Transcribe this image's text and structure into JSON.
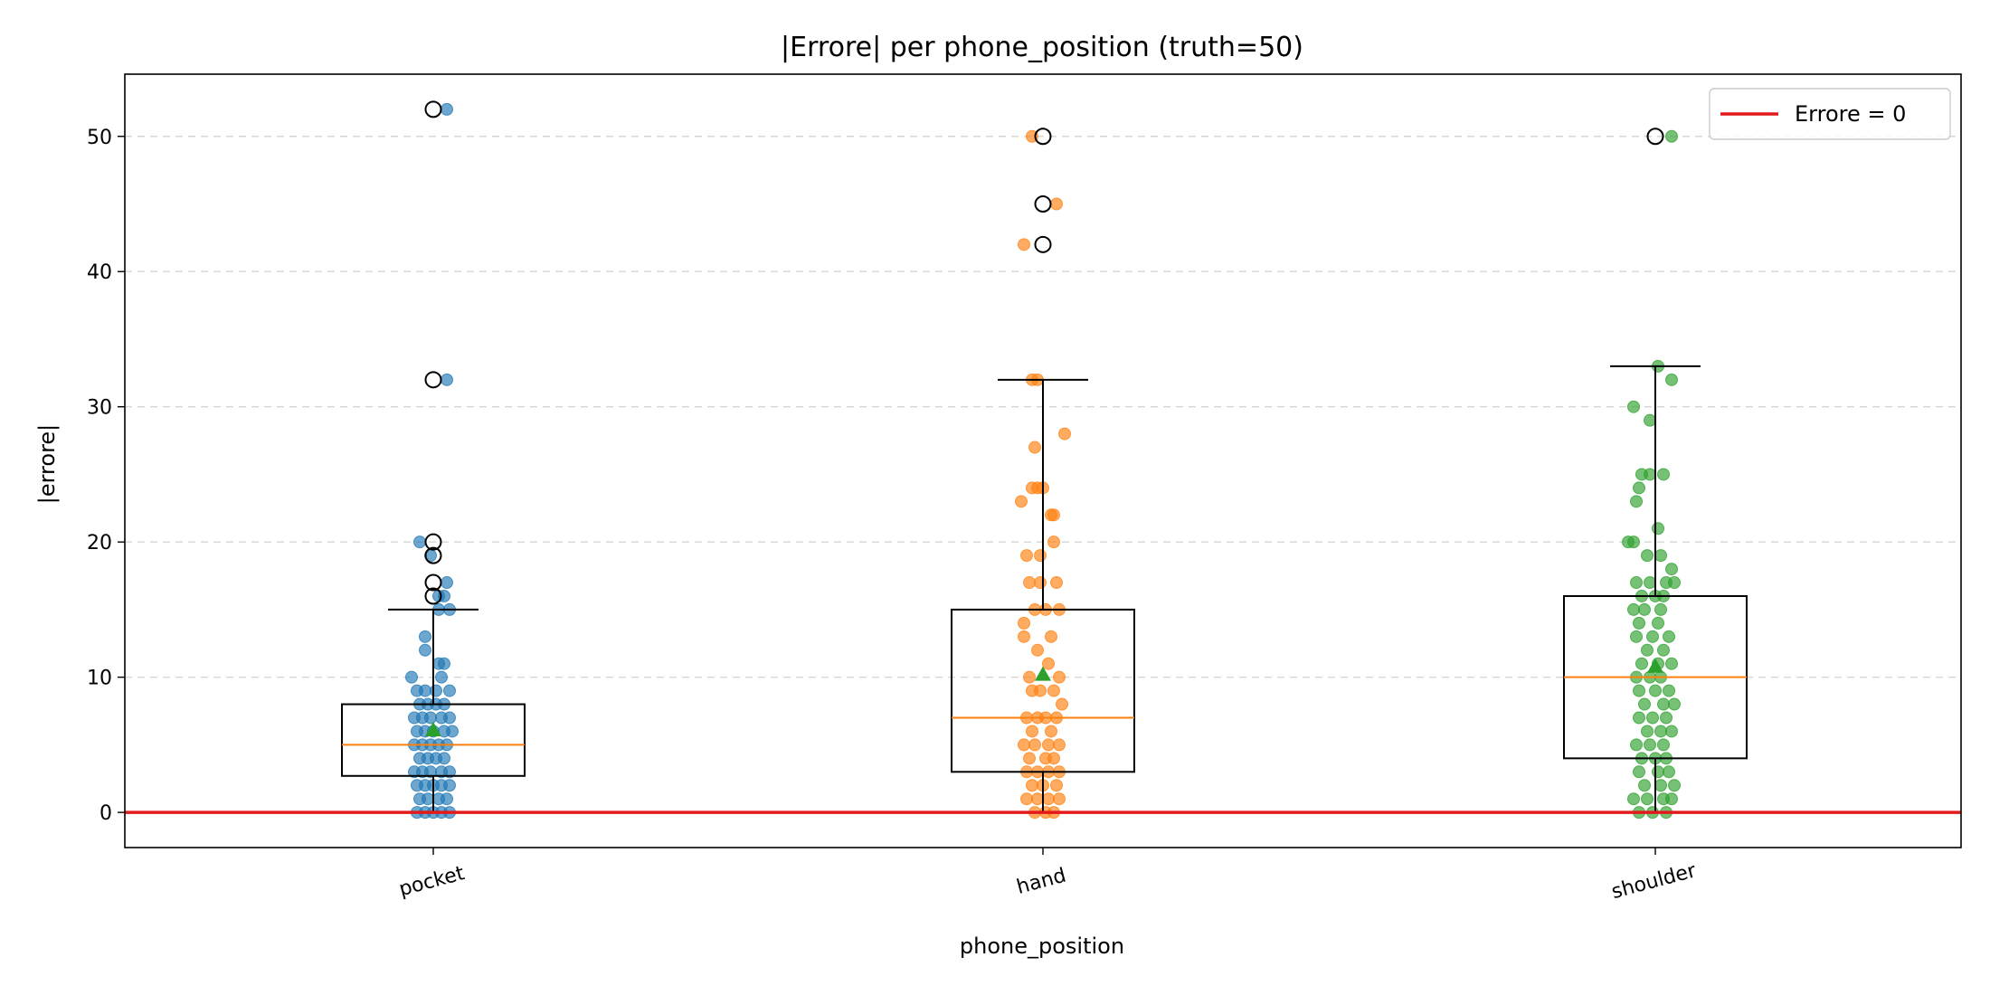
{
  "chart_data": {
    "type": "box",
    "title": "|Errore| per phone_position (truth=50)",
    "xlabel": "phone_position",
    "ylabel": "|errore|",
    "categories": [
      "pocket",
      "hand",
      "shoulder"
    ],
    "ylim": [
      -2.6,
      54.6
    ],
    "yticks": [
      0,
      10,
      20,
      30,
      40,
      50
    ],
    "grid": "y-dashed",
    "legend": {
      "placement": "top-right",
      "label": "Errore = 0"
    },
    "reference_line": {
      "y": 0,
      "label": "Errore = 0",
      "color": "#e31a1c"
    },
    "colors": {
      "pocket": "#1f77b4",
      "hand": "#ff7f0e",
      "shoulder": "#2ca02c",
      "median": "#ff7f0e",
      "mean": "#2ca02c",
      "box": "#000000"
    },
    "series": [
      {
        "category": "pocket",
        "color": "#1f77b4",
        "box": {
          "whisker_low": 0,
          "q1": 2.7,
          "median": 5,
          "q3": 8,
          "whisker_high": 15,
          "mean": 6.1
        },
        "outliers": [
          52,
          32,
          20,
          19,
          17,
          16
        ],
        "points": [
          [
            0.05,
            52
          ],
          [
            0.05,
            32
          ],
          [
            -0.05,
            20
          ],
          [
            -0.01,
            19
          ],
          [
            0.05,
            17
          ],
          [
            0.02,
            16
          ],
          [
            0.04,
            16
          ],
          [
            0.02,
            15
          ],
          [
            0.06,
            15
          ],
          [
            -0.03,
            13
          ],
          [
            -0.03,
            12
          ],
          [
            0.02,
            11
          ],
          [
            0.04,
            11
          ],
          [
            -0.08,
            10
          ],
          [
            0.03,
            10
          ],
          [
            -0.06,
            9
          ],
          [
            -0.03,
            9
          ],
          [
            0.01,
            9
          ],
          [
            0.06,
            9
          ],
          [
            -0.05,
            8
          ],
          [
            -0.02,
            8
          ],
          [
            0.01,
            8
          ],
          [
            0.04,
            8
          ],
          [
            -0.07,
            7
          ],
          [
            -0.04,
            7
          ],
          [
            -0.01,
            7
          ],
          [
            0.03,
            7
          ],
          [
            0.06,
            7
          ],
          [
            -0.06,
            6
          ],
          [
            -0.03,
            6
          ],
          [
            0.0,
            6
          ],
          [
            0.04,
            6
          ],
          [
            0.07,
            6
          ],
          [
            -0.07,
            5
          ],
          [
            -0.04,
            5
          ],
          [
            -0.01,
            5
          ],
          [
            0.02,
            5
          ],
          [
            0.05,
            5
          ],
          [
            -0.05,
            4
          ],
          [
            -0.02,
            4
          ],
          [
            0.01,
            4
          ],
          [
            0.04,
            4
          ],
          [
            -0.07,
            3
          ],
          [
            -0.04,
            3
          ],
          [
            -0.01,
            3
          ],
          [
            0.03,
            3
          ],
          [
            0.06,
            3
          ],
          [
            -0.06,
            2
          ],
          [
            -0.03,
            2
          ],
          [
            0.0,
            2
          ],
          [
            0.03,
            2
          ],
          [
            0.06,
            2
          ],
          [
            -0.05,
            1
          ],
          [
            -0.02,
            1
          ],
          [
            0.02,
            1
          ],
          [
            0.05,
            1
          ],
          [
            -0.06,
            0
          ],
          [
            -0.03,
            0
          ],
          [
            0.0,
            0
          ],
          [
            0.03,
            0
          ],
          [
            0.06,
            0
          ]
        ]
      },
      {
        "category": "hand",
        "color": "#ff7f0e",
        "box": {
          "whisker_low": 0,
          "q1": 3,
          "median": 7,
          "q3": 15,
          "whisker_high": 32,
          "mean": 10.2
        },
        "outliers": [
          50,
          45,
          42
        ],
        "points": [
          [
            -0.04,
            50
          ],
          [
            0.05,
            45
          ],
          [
            -0.07,
            42
          ],
          [
            -0.04,
            32
          ],
          [
            -0.02,
            32
          ],
          [
            0.08,
            28
          ],
          [
            -0.03,
            27
          ],
          [
            -0.04,
            24
          ],
          [
            -0.02,
            24
          ],
          [
            0.0,
            24
          ],
          [
            -0.08,
            23
          ],
          [
            0.03,
            22
          ],
          [
            0.04,
            22
          ],
          [
            -0.06,
            19
          ],
          [
            -0.01,
            19
          ],
          [
            0.04,
            20
          ],
          [
            -0.05,
            17
          ],
          [
            -0.01,
            17
          ],
          [
            0.05,
            17
          ],
          [
            -0.07,
            14
          ],
          [
            -0.03,
            15
          ],
          [
            0.01,
            15
          ],
          [
            0.06,
            15
          ],
          [
            -0.07,
            13
          ],
          [
            0.03,
            13
          ],
          [
            -0.02,
            12
          ],
          [
            0.02,
            11
          ],
          [
            -0.05,
            10
          ],
          [
            0.06,
            10
          ],
          [
            -0.04,
            9
          ],
          [
            -0.01,
            9
          ],
          [
            0.04,
            9
          ],
          [
            0.07,
            8
          ],
          [
            -0.06,
            7
          ],
          [
            -0.02,
            7
          ],
          [
            0.01,
            7
          ],
          [
            0.05,
            7
          ],
          [
            -0.04,
            6
          ],
          [
            0.03,
            6
          ],
          [
            -0.07,
            5
          ],
          [
            -0.03,
            5
          ],
          [
            0.02,
            5
          ],
          [
            0.06,
            5
          ],
          [
            -0.05,
            4
          ],
          [
            0.01,
            4
          ],
          [
            0.04,
            4
          ],
          [
            -0.06,
            3
          ],
          [
            -0.02,
            3
          ],
          [
            0.02,
            3
          ],
          [
            0.06,
            3
          ],
          [
            -0.04,
            2
          ],
          [
            0.0,
            2
          ],
          [
            0.05,
            2
          ],
          [
            -0.06,
            1
          ],
          [
            -0.02,
            1
          ],
          [
            0.02,
            1
          ],
          [
            0.06,
            1
          ],
          [
            -0.03,
            0
          ],
          [
            0.01,
            0
          ],
          [
            0.04,
            0
          ]
        ]
      },
      {
        "category": "shoulder",
        "color": "#2ca02c",
        "box": {
          "whisker_low": 0,
          "q1": 4,
          "median": 10,
          "q3": 16,
          "whisker_high": 33,
          "mean": 10.8
        },
        "outliers": [
          50
        ],
        "points": [
          [
            0.06,
            50
          ],
          [
            0.01,
            33
          ],
          [
            0.06,
            32
          ],
          [
            -0.08,
            30
          ],
          [
            -0.02,
            29
          ],
          [
            -0.05,
            25
          ],
          [
            -0.02,
            25
          ],
          [
            0.03,
            25
          ],
          [
            -0.06,
            24
          ],
          [
            -0.07,
            23
          ],
          [
            0.01,
            21
          ],
          [
            -0.1,
            20
          ],
          [
            -0.08,
            20
          ],
          [
            -0.03,
            19
          ],
          [
            0.02,
            19
          ],
          [
            0.06,
            18
          ],
          [
            -0.07,
            17
          ],
          [
            -0.02,
            17
          ],
          [
            0.04,
            17
          ],
          [
            0.07,
            17
          ],
          [
            -0.05,
            16
          ],
          [
            0.0,
            16
          ],
          [
            0.03,
            16
          ],
          [
            -0.08,
            15
          ],
          [
            -0.04,
            15
          ],
          [
            0.02,
            15
          ],
          [
            -0.06,
            14
          ],
          [
            0.01,
            14
          ],
          [
            -0.07,
            13
          ],
          [
            -0.01,
            13
          ],
          [
            0.05,
            13
          ],
          [
            -0.03,
            12
          ],
          [
            0.03,
            12
          ],
          [
            -0.05,
            11
          ],
          [
            0.01,
            11
          ],
          [
            0.06,
            11
          ],
          [
            -0.07,
            10
          ],
          [
            -0.02,
            10
          ],
          [
            0.02,
            10
          ],
          [
            -0.06,
            9
          ],
          [
            0.0,
            9
          ],
          [
            0.05,
            9
          ],
          [
            -0.04,
            8
          ],
          [
            0.03,
            8
          ],
          [
            0.07,
            8
          ],
          [
            -0.06,
            7
          ],
          [
            -0.01,
            7
          ],
          [
            0.04,
            7
          ],
          [
            -0.03,
            6
          ],
          [
            0.02,
            6
          ],
          [
            0.06,
            6
          ],
          [
            -0.07,
            5
          ],
          [
            -0.02,
            5
          ],
          [
            0.03,
            5
          ],
          [
            -0.05,
            4
          ],
          [
            0.0,
            4
          ],
          [
            0.04,
            4
          ],
          [
            -0.06,
            3
          ],
          [
            0.01,
            3
          ],
          [
            0.05,
            3
          ],
          [
            -0.04,
            2
          ],
          [
            0.02,
            2
          ],
          [
            0.07,
            2
          ],
          [
            -0.08,
            1
          ],
          [
            -0.03,
            1
          ],
          [
            0.03,
            1
          ],
          [
            0.06,
            1
          ],
          [
            -0.06,
            0
          ],
          [
            -0.01,
            0
          ],
          [
            0.04,
            0
          ]
        ]
      }
    ]
  }
}
